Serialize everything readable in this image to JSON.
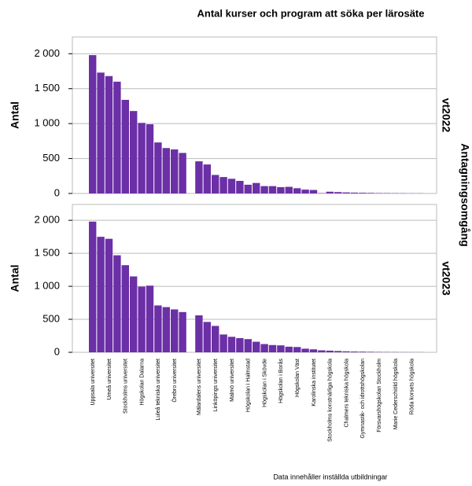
{
  "chart_data": {
    "type": "bar",
    "title": "Antal kurser och program att söka per lärosäte",
    "categories": [
      "Uppsala universitet",
      null,
      "Umeå universitet",
      null,
      "Stockholms universitet",
      null,
      "Högskolan Dalarna",
      null,
      "Luleå tekniska universitet",
      null,
      "Örebro universitet",
      null,
      null,
      "Mälardalens universitet",
      null,
      "Linköpings universitet",
      null,
      "Malmö universitet",
      null,
      "Högskolan i Halmstad",
      null,
      "Högskolan i Skövde",
      null,
      "Högskolan i Borås",
      null,
      "Högskolan Väst",
      null,
      "Karolinska institutet",
      null,
      "Stockholms konstnärliga högskola",
      null,
      "Chalmers tekniska högskola",
      null,
      "Gymnastik- och idrottshögskolan",
      null,
      "Försvarshögskolan Stockholm",
      null,
      "Marie Cederschiöld högskola",
      null,
      "Röda korsets högskola",
      null
    ],
    "series": [
      {
        "name": "vt2022",
        "color": "#6b2fa6",
        "values": [
          1980,
          1730,
          1680,
          1600,
          1340,
          1180,
          1010,
          990,
          730,
          650,
          630,
          580,
          null,
          460,
          415,
          265,
          235,
          210,
          180,
          125,
          150,
          105,
          105,
          90,
          95,
          75,
          55,
          50,
          5,
          25,
          20,
          15,
          12,
          10,
          8,
          6,
          5,
          4,
          3,
          2,
          2
        ]
      },
      {
        "name": "vt2023",
        "color": "#6b2fa6",
        "values": [
          1980,
          1750,
          1720,
          1470,
          1320,
          1150,
          995,
          1010,
          710,
          685,
          650,
          610,
          null,
          560,
          460,
          400,
          270,
          235,
          215,
          200,
          160,
          125,
          110,
          105,
          85,
          80,
          55,
          45,
          30,
          25,
          20,
          15,
          12,
          10,
          8,
          6,
          5,
          4,
          3,
          2,
          2
        ]
      }
    ],
    "ylabel": "Antal",
    "facet_label": "Antagningsomgång",
    "note": "Data innehåller inställda utbildningar",
    "ylim": [
      0,
      2240
    ],
    "yticks": [
      0,
      500,
      {
        "value": 1000,
        "label": "1 000"
      },
      {
        "value": 1500,
        "label": "1 500"
      },
      {
        "value": 2000,
        "label": "2 000"
      }
    ],
    "grid": true
  }
}
